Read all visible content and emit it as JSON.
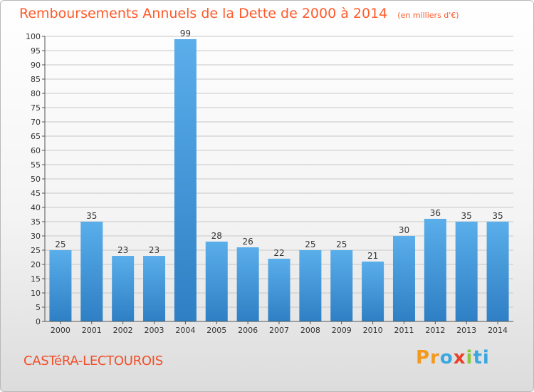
{
  "chart_data": {
    "type": "bar",
    "title": "Remboursements Annuels de la Dette de 2000 à 2014",
    "subtitle": "(en milliers d'€)",
    "categories": [
      "2000",
      "2001",
      "2002",
      "2003",
      "2004",
      "2005",
      "2006",
      "2007",
      "2008",
      "2009",
      "2010",
      "2011",
      "2012",
      "2013",
      "2014"
    ],
    "values": [
      25,
      35,
      23,
      23,
      99,
      28,
      26,
      22,
      25,
      25,
      21,
      30,
      36,
      35,
      35
    ],
    "ylim": [
      0,
      100
    ],
    "yticks": [
      0,
      5,
      10,
      15,
      20,
      25,
      30,
      35,
      40,
      45,
      50,
      55,
      60,
      65,
      70,
      75,
      80,
      85,
      90,
      95,
      100
    ],
    "grid": true,
    "bar_color": "#4a9fe2",
    "grid_color": "#c8c8c8"
  },
  "footer": {
    "commune": "CASTéRA-LECTOUROIS",
    "brand": [
      "Pr",
      "o",
      "x",
      "i",
      "ti"
    ]
  }
}
